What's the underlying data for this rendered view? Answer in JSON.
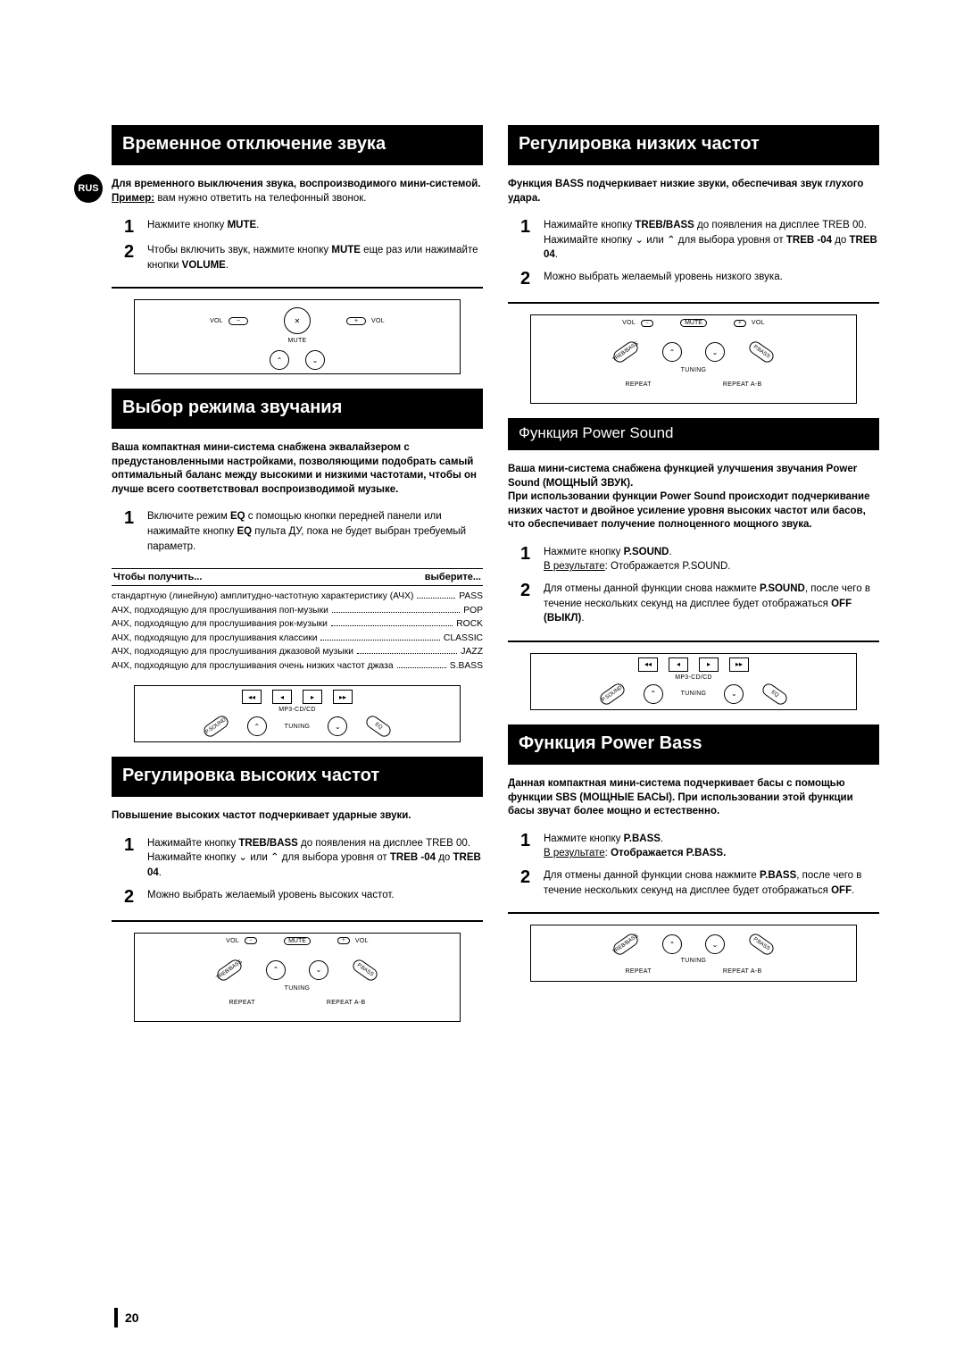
{
  "region_badge": "RUS",
  "page_number": "20",
  "left": {
    "sec1": {
      "heading": "Временное отключение звука",
      "intro_lead": "Для временного выключения звука, воспроизводимого мини-системой.",
      "intro_ex_label": "Пример:",
      "intro_ex_text": " вам нужно ответить на телефонный звонок.",
      "step1": "Нажмите кнопку <b>MUTE</b>.",
      "step2": "Чтобы включить звук, нажмите кнопку <b>MUTE</b> еще раз или нажимайте кнопки <b>VOLUME</b>."
    },
    "sec2": {
      "heading": "Выбор режима звучания",
      "intro": "Ваша компактная мини-система снабжена эквалайзером с предустановленными настройками, позволяющими подобрать самый оптимальный баланс между высокими и низкими частотами, чтобы он лучше всего соответствовал воспроизводимой музыке.",
      "step1": "Включите режим <b>EQ</b> с помощью кнопки передней панели или нажимайте кнопку <b>EQ</b> пульта ДУ, пока не будет выбран требуемый параметр.",
      "tbl_head_l": "Чтобы получить...",
      "tbl_head_r": "выберите...",
      "rows": [
        {
          "l": "стандартную (линейную) амплитудно-частотную характеристику (АЧХ)",
          "r": "PASS"
        },
        {
          "l": "АЧХ, подходящую для прослушивания поп-музыки",
          "r": "POP"
        },
        {
          "l": "АЧХ, подходящую для прослушивания рок-музыки",
          "r": "ROCK"
        },
        {
          "l": "АЧХ, подходящую для прослушивания классики",
          "r": "CLASSIC"
        },
        {
          "l": "АЧХ, подходящую для прослушивания джазовой музыки",
          "r": "JAZZ"
        },
        {
          "l": "АЧХ, подходящую для прослушивания очень низких частот джаза",
          "r": "S.BASS"
        }
      ]
    },
    "sec3": {
      "heading": "Регулировка высоких частот",
      "intro": "Повышение высоких частот подчеркивает ударные звуки.",
      "step1": "Нажимайте кнопку <b>TREB/BASS</b> до появления на дисплее TREB 00. Нажимайте кнопку ⌄ или ⌃ для выбора уровня от <b>TREB -04</b> до <b>TREB 04</b>.",
      "step2": "Можно выбрать желаемый уровень высоких частот."
    }
  },
  "right": {
    "sec1": {
      "heading": "Регулировка низких частот",
      "intro": "Функция BASS подчеркивает низкие звуки, обеспечивая звук глухого удара.",
      "step1": "Нажимайте кнопку <b>TREB/BASS</b> до появления на дисплее TREB 00. Нажимайте кнопку ⌄ или ⌃ для выбора уровня от <b>TREB -04</b> до <b>TREB 04</b>.",
      "step2": "Можно выбрать желаемый уровень низкого звука."
    },
    "sec2": {
      "subheading": "Функция Power Sound",
      "intro": "Ваша мини-система снабжена функцией улучшения звучания Power Sound (МОЩНЫЙ ЗВУК).\nПри использовании функции Power Sound происходит подчеркивание низких частот и двойное усиление уровня высоких частот или басов, что обеспечивает получение полноценного мощного звука.",
      "step1": "Нажмите кнопку <b>P.SOUND</b>.\n<u>В результате</u>: Отображается P.SOUND.",
      "step2": "Для отмены данной функции снова нажмите <b>P.SOUND</b>, после чего в течение нескольких секунд на дисплее будет отображаться <b>OFF (ВЫКЛ)</b>."
    },
    "sec3": {
      "heading": "Функция Power Bass",
      "intro": "Данная компактная мини-система подчеркивает басы с помощью функции SBS (МОЩНЫЕ БАСЫ). При использовании этой функции басы звучат более мощно и естественно.",
      "step1": "Нажмите кнопку <b>P.BASS</b>.\n<u>В результате</u>: <b>Отображается P.BASS.</b>",
      "step2": "Для отмены данной функции снова нажмите <b>P.BASS</b>, после чего в течение нескольких секунд на дисплее будет отображаться <b>OFF</b>."
    }
  },
  "illus_labels": {
    "vol": "VOL",
    "mute": "MUTE",
    "tuning": "TUNING",
    "repeat": "REPEAT",
    "repeat_ab": "REPEAT A-B",
    "treb_bass": "TREB/BASS",
    "pbass": "P.BASS",
    "mp3cd": "MP3-CD/CD",
    "psound": "P.SOUND",
    "eq": "EQ"
  }
}
